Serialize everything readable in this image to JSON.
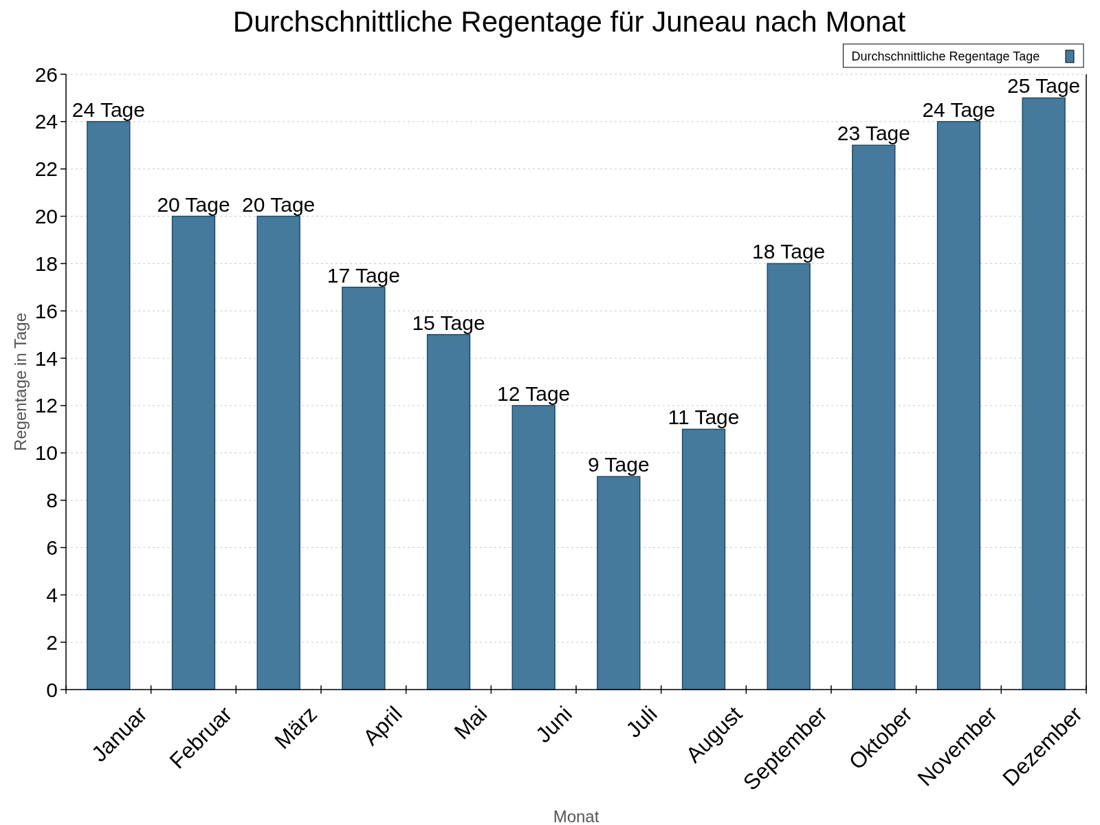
{
  "chart_data": {
    "type": "bar",
    "title": "Durchschnittliche Regentage für Juneau nach Monat",
    "xlabel": "Monat",
    "ylabel": "Regentage in Tage",
    "categories": [
      "Januar",
      "Februar",
      "März",
      "April",
      "Mai",
      "Juni",
      "Juli",
      "August",
      "September",
      "Oktober",
      "November",
      "Dezember"
    ],
    "series": [
      {
        "name": "Durchschnittliche Regentage Tage",
        "color": "#467a9c",
        "values": [
          24,
          20,
          20,
          17,
          15,
          12,
          9,
          11,
          18,
          23,
          24,
          25
        ],
        "value_labels": [
          "24 Tage",
          "20 Tage",
          "20 Tage",
          "17 Tage",
          "15 Tage",
          "12 Tage",
          "9 Tage",
          "11 Tage",
          "18 Tage",
          "23 Tage",
          "24 Tage",
          "25 Tage"
        ]
      }
    ],
    "ylim": [
      0,
      26
    ],
    "yticks": [
      0,
      2,
      4,
      6,
      8,
      10,
      12,
      14,
      16,
      18,
      20,
      22,
      24,
      26
    ],
    "grid": "y",
    "legend": "top right"
  }
}
